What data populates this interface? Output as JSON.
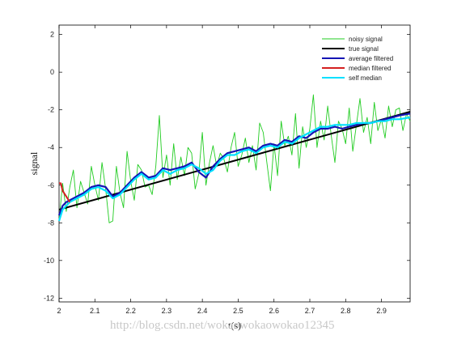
{
  "chart_data": {
    "type": "line",
    "xlabel": "t(s)",
    "ylabel": "signal",
    "xlim": [
      2.0,
      2.98
    ],
    "ylim": [
      -12.2,
      2.5
    ],
    "xticks": [
      "2",
      "2.1",
      "2.2",
      "2.3",
      "2.4",
      "2.5",
      "2.6",
      "2.7",
      "2.8",
      "2.9"
    ],
    "yticks": [
      "2",
      "0",
      "-2",
      "-4",
      "-6",
      "-8",
      "-10",
      "-12"
    ],
    "xtick_values": [
      2.0,
      2.1,
      2.2,
      2.3,
      2.4,
      2.5,
      2.6,
      2.7,
      2.8,
      2.9
    ],
    "ytick_values": [
      2,
      0,
      -2,
      -4,
      -6,
      -8,
      -10,
      -12
    ],
    "grid": false,
    "legend_position": "top-right",
    "series": [
      {
        "name": "noisy signal",
        "color": "#22cc22",
        "x": [
          2.0,
          2.01,
          2.02,
          2.03,
          2.04,
          2.05,
          2.06,
          2.07,
          2.08,
          2.09,
          2.1,
          2.11,
          2.12,
          2.13,
          2.14,
          2.15,
          2.16,
          2.17,
          2.18,
          2.19,
          2.2,
          2.21,
          2.22,
          2.23,
          2.24,
          2.25,
          2.26,
          2.27,
          2.28,
          2.29,
          2.3,
          2.31,
          2.32,
          2.33,
          2.34,
          2.35,
          2.36,
          2.37,
          2.38,
          2.39,
          2.4,
          2.41,
          2.42,
          2.43,
          2.44,
          2.45,
          2.46,
          2.47,
          2.48,
          2.49,
          2.5,
          2.51,
          2.52,
          2.53,
          2.54,
          2.55,
          2.56,
          2.57,
          2.58,
          2.59,
          2.6,
          2.61,
          2.62,
          2.63,
          2.64,
          2.65,
          2.66,
          2.67,
          2.68,
          2.69,
          2.7,
          2.71,
          2.72,
          2.73,
          2.74,
          2.75,
          2.76,
          2.77,
          2.78,
          2.79,
          2.8,
          2.81,
          2.82,
          2.83,
          2.84,
          2.85,
          2.86,
          2.87,
          2.88,
          2.89,
          2.9,
          2.91,
          2.92,
          2.93,
          2.94,
          2.95,
          2.96,
          2.97,
          2.98
        ],
        "values": [
          -7.9,
          -5.9,
          -7.4,
          -6.1,
          -5.2,
          -7.2,
          -5.8,
          -6.4,
          -7.0,
          -5.0,
          -6.0,
          -6.8,
          -4.8,
          -6.2,
          -8.0,
          -7.9,
          -5.0,
          -6.4,
          -7.2,
          -4.2,
          -5.8,
          -6.8,
          -4.9,
          -5.2,
          -6.1,
          -6.0,
          -6.5,
          -5.0,
          -2.3,
          -5.6,
          -4.4,
          -6.0,
          -3.8,
          -5.7,
          -4.5,
          -5.5,
          -4.0,
          -4.3,
          -6.2,
          -5.4,
          -3.2,
          -6.0,
          -4.8,
          -3.9,
          -5.0,
          -4.3,
          -4.6,
          -5.3,
          -4.0,
          -3.2,
          -5.0,
          -4.4,
          -3.5,
          -4.8,
          -3.9,
          -5.2,
          -2.7,
          -3.2,
          -4.8,
          -6.3,
          -3.8,
          -5.5,
          -2.6,
          -3.9,
          -3.4,
          -4.4,
          -2.2,
          -5.1,
          -2.9,
          -4.0,
          -3.0,
          -1.2,
          -4.0,
          -2.6,
          -3.6,
          -1.8,
          -3.4,
          -4.8,
          -2.6,
          -3.0,
          -3.8,
          -1.9,
          -4.2,
          -2.8,
          -1.4,
          -3.2,
          -2.4,
          -3.8,
          -1.6,
          -3.1,
          -2.5,
          -3.5,
          -1.8,
          -2.9,
          -2.0,
          -1.9,
          -3.1,
          -2.2,
          -2.6
        ]
      },
      {
        "name": "true signal",
        "color": "#000000",
        "x": [
          2.0,
          2.98
        ],
        "values": [
          -7.3,
          -2.1
        ]
      },
      {
        "name": "average filtered",
        "color": "#1414b4",
        "x": [
          2.0,
          2.01,
          2.02,
          2.03,
          2.05,
          2.07,
          2.09,
          2.11,
          2.13,
          2.15,
          2.17,
          2.19,
          2.21,
          2.23,
          2.25,
          2.27,
          2.29,
          2.31,
          2.33,
          2.35,
          2.37,
          2.39,
          2.41,
          2.43,
          2.45,
          2.47,
          2.49,
          2.51,
          2.53,
          2.55,
          2.57,
          2.59,
          2.61,
          2.63,
          2.65,
          2.67,
          2.69,
          2.71,
          2.73,
          2.75,
          2.77,
          2.79,
          2.81,
          2.83,
          2.85,
          2.87,
          2.89,
          2.91,
          2.93,
          2.95,
          2.98
        ],
        "values": [
          -7.6,
          -7.1,
          -6.9,
          -6.8,
          -6.6,
          -6.4,
          -6.1,
          -6.0,
          -6.1,
          -6.6,
          -6.4,
          -6.0,
          -5.6,
          -5.3,
          -5.6,
          -5.5,
          -5.1,
          -5.2,
          -5.1,
          -5.0,
          -4.8,
          -5.3,
          -5.6,
          -5.0,
          -4.6,
          -4.3,
          -4.2,
          -4.1,
          -4.0,
          -4.2,
          -3.9,
          -3.8,
          -3.9,
          -3.6,
          -3.7,
          -3.4,
          -3.5,
          -3.2,
          -3.0,
          -3.0,
          -2.9,
          -3.0,
          -2.9,
          -2.8,
          -2.7,
          -2.7,
          -2.6,
          -2.5,
          -2.4,
          -2.3,
          -2.2
        ]
      },
      {
        "name": "median filtered",
        "color": "#d42020",
        "x": [
          2.0,
          2.005,
          2.01,
          2.02,
          2.03
        ],
        "values": [
          -5.9,
          -5.9,
          -6.3,
          -6.6,
          -6.9
        ]
      },
      {
        "name": "self median",
        "color": "#00e0ff",
        "x": [
          2.0,
          2.01,
          2.02,
          2.03,
          2.05,
          2.07,
          2.09,
          2.11,
          2.13,
          2.15,
          2.17,
          2.19,
          2.21,
          2.23,
          2.25,
          2.27,
          2.29,
          2.31,
          2.33,
          2.35,
          2.37,
          2.39,
          2.41,
          2.43,
          2.45,
          2.47,
          2.49,
          2.51,
          2.53,
          2.55,
          2.57,
          2.59,
          2.61,
          2.63,
          2.65,
          2.67,
          2.69,
          2.71,
          2.73,
          2.75,
          2.77,
          2.79,
          2.81,
          2.83,
          2.85,
          2.87,
          2.89,
          2.91,
          2.93,
          2.95,
          2.98
        ],
        "values": [
          -7.9,
          -7.3,
          -7.1,
          -6.9,
          -6.7,
          -6.5,
          -6.2,
          -6.1,
          -6.3,
          -6.7,
          -6.5,
          -6.1,
          -5.7,
          -5.4,
          -5.7,
          -5.6,
          -5.2,
          -5.4,
          -5.2,
          -5.1,
          -4.9,
          -5.1,
          -5.4,
          -5.2,
          -4.7,
          -4.4,
          -4.4,
          -4.2,
          -4.1,
          -4.3,
          -4.0,
          -3.9,
          -4.0,
          -3.7,
          -3.8,
          -3.5,
          -3.3,
          -3.1,
          -2.9,
          -2.9,
          -2.8,
          -2.8,
          -2.8,
          -2.7,
          -2.7,
          -2.7,
          -2.6,
          -2.6,
          -2.5,
          -2.5,
          -2.4
        ]
      }
    ]
  },
  "legend": {
    "items": [
      {
        "label": "noisy signal",
        "color": "#22cc22",
        "width": 1
      },
      {
        "label": "true signal",
        "color": "#000000",
        "width": 2
      },
      {
        "label": "average filtered",
        "color": "#1414b4",
        "width": 2
      },
      {
        "label": "median filtered",
        "color": "#d42020",
        "width": 2
      },
      {
        "label": "self median",
        "color": "#00e0ff",
        "width": 2
      }
    ]
  },
  "watermark": {
    "text": "http://blog.csdn.net/wokaowokaowokao12345"
  }
}
